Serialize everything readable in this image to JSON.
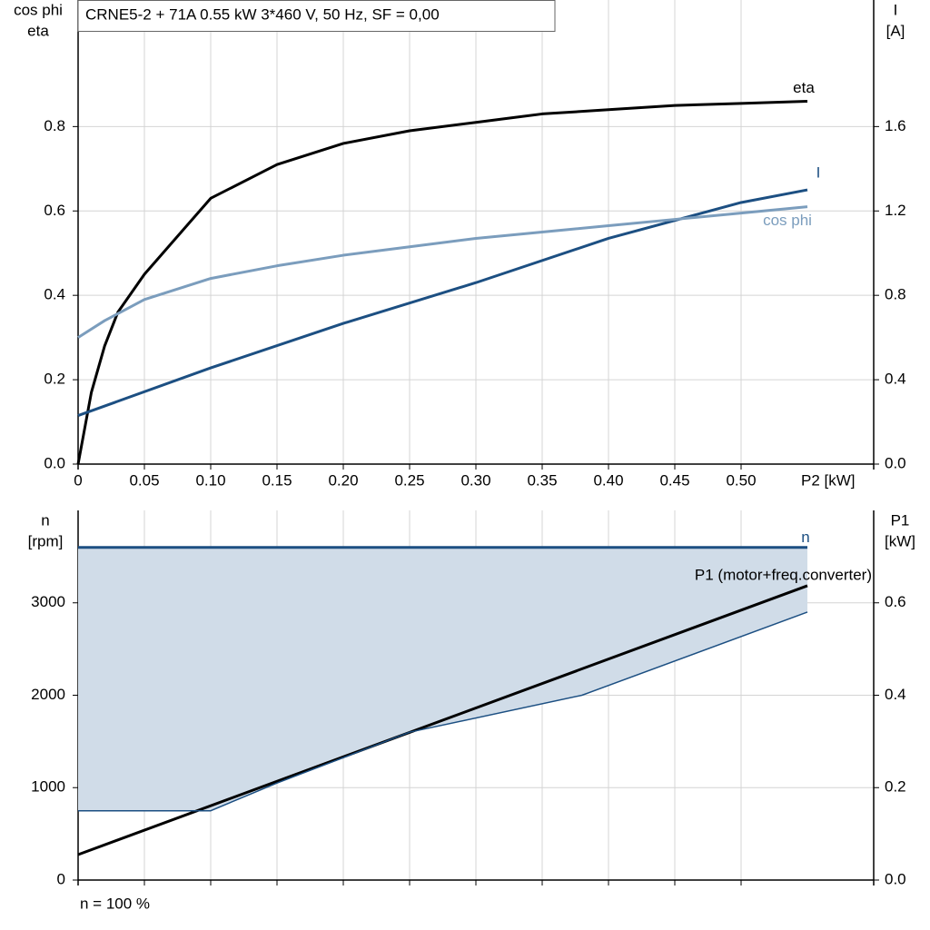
{
  "chart_data": [
    {
      "type": "line",
      "title": "CRNE5-2 + 71A   0.55 kW   3*460 V, 50 Hz, SF = 0,00",
      "ylabel": [
        "cos phi",
        "eta"
      ],
      "y2label": [
        "I",
        "[A]"
      ],
      "xlabel": "P2 [kW]",
      "xlim": [
        0,
        0.6
      ],
      "xticks": [
        0,
        0.05,
        {
          "value": 0.1,
          "label": "0.10"
        },
        0.15,
        {
          "value": 0.2,
          "label": "0.20"
        },
        0.25,
        {
          "value": 0.3,
          "label": "0.30"
        },
        0.35,
        {
          "value": 0.4,
          "label": "0.40"
        },
        0.45,
        {
          "value": 0.5,
          "label": "0.50"
        }
      ],
      "ylim": [
        0,
        1.1
      ],
      "yticks": [
        {
          "value": 0,
          "label": "0.0"
        },
        0.2,
        0.4,
        0.6,
        0.8
      ],
      "y2lim": [
        0,
        2.2
      ],
      "y2ticks": [
        {
          "value": 0,
          "label": "0.0"
        },
        0.4,
        0.8,
        1.2,
        1.6
      ],
      "grid": true,
      "series": [
        {
          "name": "eta",
          "color": "#000000",
          "x": [
            0,
            0.01,
            0.02,
            0.03,
            0.05,
            0.1,
            0.15,
            0.2,
            0.25,
            0.3,
            0.35,
            0.4,
            0.45,
            0.5,
            0.55
          ],
          "values": [
            0,
            0.17,
            0.28,
            0.36,
            0.45,
            0.63,
            0.71,
            0.76,
            0.79,
            0.81,
            0.83,
            0.84,
            0.85,
            0.855,
            0.86
          ]
        },
        {
          "name": "I",
          "color": "#1c4f82",
          "axis": "y2",
          "x": [
            0,
            0.1,
            0.2,
            0.3,
            0.4,
            0.5,
            0.55
          ],
          "values": [
            0.23,
            0.456,
            0.667,
            0.86,
            1.07,
            1.24,
            1.3
          ]
        },
        {
          "name": "cos phi",
          "color": "#7b9dbd",
          "x": [
            0,
            0.02,
            0.05,
            0.1,
            0.15,
            0.2,
            0.25,
            0.3,
            0.35,
            0.4,
            0.45,
            0.5,
            0.55
          ],
          "values": [
            0.3,
            0.34,
            0.39,
            0.44,
            0.47,
            0.495,
            0.515,
            0.535,
            0.55,
            0.565,
            0.58,
            0.595,
            0.61
          ]
        }
      ]
    },
    {
      "type": "line",
      "ylabel": [
        "n",
        "[rpm]"
      ],
      "y2label": [
        "P1",
        "[kW]"
      ],
      "xlabel": "n = 100 %",
      "xlim": [
        0,
        0.6
      ],
      "xticks": [
        0,
        0.05,
        0.1,
        0.15,
        0.2,
        0.25,
        0.3,
        0.35,
        0.4,
        0.45,
        0.5
      ],
      "ylim": [
        0,
        4000
      ],
      "yticks": [
        0,
        1000,
        2000,
        3000
      ],
      "y2lim": [
        0,
        0.8
      ],
      "y2ticks": [
        {
          "value": 0,
          "label": "0.0"
        },
        0.2,
        0.4,
        0.6
      ],
      "grid": true,
      "series": [
        {
          "name": "n",
          "color": "#1c4f82",
          "x": [
            0,
            0.55
          ],
          "values": [
            3600,
            3600
          ]
        },
        {
          "name": "P1 (motor+freq.converter)",
          "color": "#000000",
          "axis": "y2",
          "x": [
            0,
            0.55
          ],
          "values": [
            0.055,
            0.637
          ]
        },
        {
          "color": "#1c4f82",
          "fill": "#d0dce8",
          "x": [
            0,
            0.1,
            0.15,
            0.25,
            0.38,
            0.55
          ],
          "values": [
            750,
            750,
            1050,
            1600,
            2000,
            2900
          ]
        }
      ]
    }
  ]
}
